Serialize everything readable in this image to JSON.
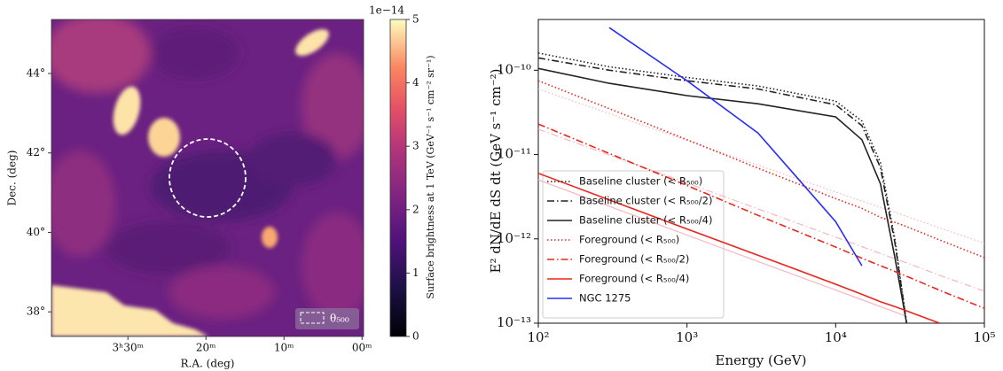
{
  "chart_data": [
    {
      "type": "image",
      "xlabel": "R.A. (deg)",
      "ylabel": "Dec. (deg)",
      "xlim": [
        219.8,
        179.8
      ],
      "xticks": [
        {
          "value": 210,
          "label": "3ʰ30ᵐ"
        },
        {
          "value": 200,
          "label": "20ᵐ"
        },
        {
          "value": 190,
          "label": "10ᵐ"
        },
        {
          "value": 180,
          "label": "00ᵐ"
        }
      ],
      "ylim": [
        37.38,
        45.36
      ],
      "yticks": [
        {
          "value": 38,
          "label": "38°"
        },
        {
          "value": 40,
          "label": "40°"
        },
        {
          "value": 42,
          "label": "42°"
        },
        {
          "value": 44,
          "label": "44°"
        }
      ],
      "legend": "θ₅₀₀",
      "colorbar": {
        "label": "Surface brightness at 1 TeV (GeV⁻¹ s⁻¹ cm⁻² sr⁻¹)",
        "offset_label": "1e−14",
        "lim": [
          0,
          5
        ],
        "ticks": [
          0,
          1,
          2,
          3,
          4,
          5
        ]
      }
    },
    {
      "type": "line",
      "xlabel": "Energy (GeV)",
      "ylabel": "E² dN/dE dS dt (GeV s⁻¹ cm⁻²)",
      "log_x": true,
      "log_y": true,
      "xlim": [
        100,
        100000
      ],
      "ylim": [
        1e-13,
        4e-10
      ],
      "xticks": [
        {
          "value": 100,
          "label": "10²"
        },
        {
          "value": 1000,
          "label": "10³"
        },
        {
          "value": 10000,
          "label": "10⁴"
        },
        {
          "value": 100000,
          "label": "10⁵"
        }
      ],
      "yticks": [
        {
          "value": 1e-13,
          "label": "10⁻¹³"
        },
        {
          "value": 1e-12,
          "label": "10⁻¹²"
        },
        {
          "value": 1e-11,
          "label": "10⁻¹¹"
        },
        {
          "value": 1e-10,
          "label": "10⁻¹⁰"
        }
      ],
      "legend": "lower left",
      "x": [
        100,
        300,
        1000,
        3000,
        10000,
        15000,
        20000,
        25000,
        30000,
        50000,
        100000
      ],
      "series": [
        {
          "name": "Baseline cluster (< R₅₀₀)",
          "color": "#222222",
          "style": "dotted",
          "values": [
            1.6e-10,
            1.1e-10,
            8.2e-11,
            6.5e-11,
            4.3e-11,
            2.5e-11,
            8e-12,
            1e-12,
            1e-13,
            null,
            null
          ]
        },
        {
          "name": "Baseline cluster (< R₅₀₀/2)",
          "color": "#222222",
          "style": "dashdot",
          "values": [
            1.4e-10,
            1e-10,
            7.5e-11,
            6e-11,
            3.9e-11,
            2.2e-11,
            7e-12,
            9e-13,
            1e-13,
            null,
            null
          ]
        },
        {
          "name": "Baseline cluster (< R₅₀₀/4)",
          "color": "#222222",
          "style": "solid",
          "values": [
            1.05e-10,
            7e-11,
            5e-11,
            4e-11,
            2.8e-11,
            1.5e-11,
            4.5e-12,
            6e-13,
            1e-13,
            null,
            null
          ]
        },
        {
          "name": "Foreground (< R₅₀₀)",
          "color": "#e8261c",
          "style": "dotted",
          "values": [
            7.5e-11,
            3.5e-11,
            1.5e-11,
            6.9e-12,
            3e-12,
            2.3e-12,
            1.8e-12,
            1.57e-12,
            1.4e-12,
            9.7e-13,
            6e-13
          ]
        },
        {
          "name": "Foreground (< R₅₀₀/2)",
          "color": "#e8261c",
          "style": "dashdot",
          "values": [
            2.3e-11,
            1.03e-11,
            4.3e-12,
            1.9e-12,
            8e-13,
            5.9e-13,
            4.8e-13,
            4.1e-13,
            3.6e-13,
            2.46e-13,
            1.5e-13
          ]
        },
        {
          "name": "Foreground (< R₅₀₀/4)",
          "color": "#e8261c",
          "style": "solid",
          "values": [
            6e-12,
            2.9e-12,
            1.31e-12,
            6.4e-13,
            2.9e-13,
            2.2e-13,
            1.8e-13,
            1.57e-13,
            1.4e-13,
            1e-13,
            null
          ]
        },
        {
          "name": "NGC 1275",
          "color": "#2a2df5",
          "style": "solid",
          "values": [
            null,
            3.2e-10,
            7.5e-11,
            1.8e-11,
            1.6e-12,
            4.8e-13,
            null,
            null,
            null,
            null,
            null
          ]
        },
        {
          "color": "#f7b6bd",
          "style": "dotted",
          "values": [
            6e-11,
            3.07e-11,
            1.47e-11,
            7.5e-12,
            3.6e-12,
            2.8e-12,
            2.37e-12,
            2.07e-12,
            1.85e-12,
            1.35e-12,
            8.9e-13
          ]
        },
        {
          "color": "#f7b6bd",
          "style": "dashdot",
          "values": [
            2e-11,
            9.9e-12,
            4.6e-12,
            2.27e-12,
            1.05e-12,
            8.1e-13,
            6.7e-13,
            5.8e-13,
            5.2e-13,
            3.7e-13,
            2.4e-13
          ]
        },
        {
          "color": "#f7b6bd",
          "style": "solid",
          "values": [
            5e-12,
            2.44e-12,
            1.11e-12,
            5.4e-13,
            2.47e-13,
            1.9e-13,
            1.57e-13,
            1.36e-13,
            1.2e-13,
            null,
            null
          ]
        }
      ]
    }
  ]
}
